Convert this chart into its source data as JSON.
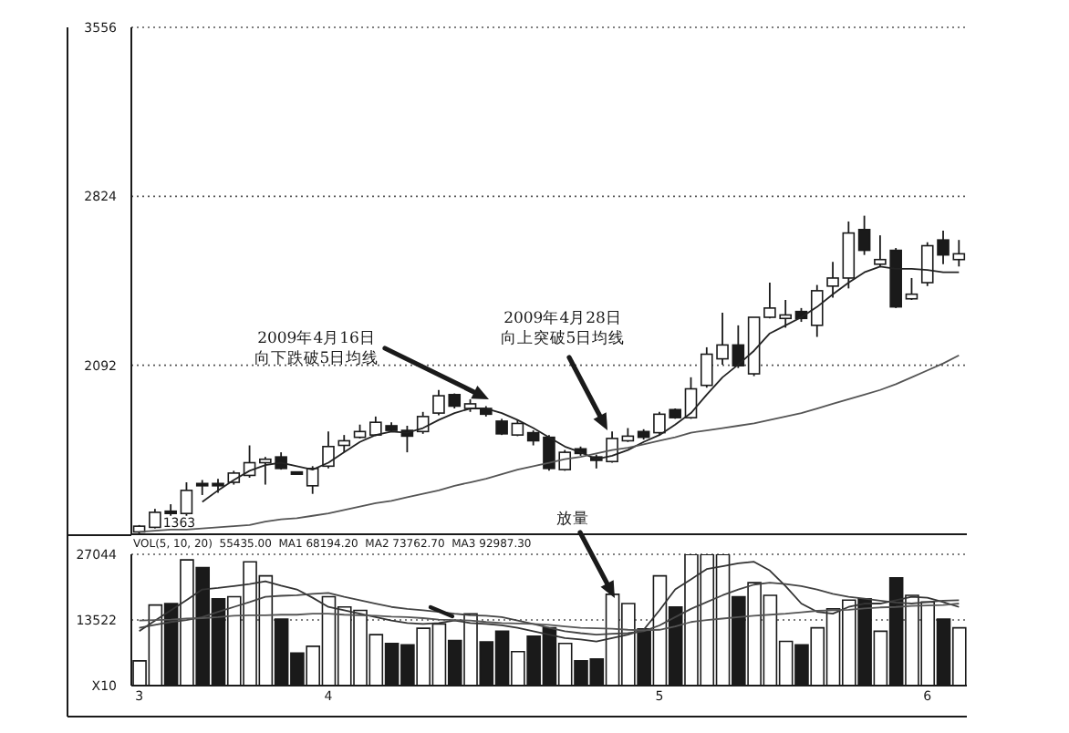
{
  "chart_data": [
    {
      "type": "candlestick",
      "categories": [
        null,
        null,
        null,
        null,
        null,
        null,
        null,
        null,
        null,
        null,
        null,
        null,
        null,
        null,
        null,
        null,
        null,
        null,
        null,
        null,
        null,
        null,
        null,
        null,
        null,
        null,
        null,
        null,
        null,
        null,
        null,
        null,
        null,
        null,
        null,
        null,
        null,
        null,
        null,
        null,
        null,
        null,
        null,
        null,
        null,
        null,
        null,
        null,
        null,
        null,
        null,
        null,
        null
      ],
      "ohlc": [
        [
          1370,
          1400,
          1363,
          1395
        ],
        [
          1390,
          1470,
          1385,
          1455
        ],
        [
          1460,
          1490,
          1440,
          1450
        ],
        [
          1450,
          1585,
          1440,
          1550
        ],
        [
          1580,
          1595,
          1530,
          1570
        ],
        [
          1580,
          1600,
          1540,
          1570
        ],
        [
          1585,
          1635,
          1575,
          1625
        ],
        [
          1615,
          1745,
          1605,
          1670
        ],
        [
          1670,
          1695,
          1575,
          1685
        ],
        [
          1695,
          1715,
          1640,
          1645
        ],
        [
          1630,
          1630,
          1620,
          1620
        ],
        [
          1570,
          1655,
          1535,
          1645
        ],
        [
          1655,
          1805,
          1645,
          1740
        ],
        [
          1745,
          1790,
          1715,
          1765
        ],
        [
          1780,
          1835,
          1775,
          1805
        ],
        [
          1790,
          1870,
          1785,
          1845
        ],
        [
          1830,
          1845,
          1805,
          1810
        ],
        [
          1810,
          1830,
          1715,
          1785
        ],
        [
          1805,
          1890,
          1795,
          1870
        ],
        [
          1885,
          1985,
          1875,
          1960
        ],
        [
          1965,
          1970,
          1905,
          1915
        ],
        [
          1905,
          1945,
          1890,
          1925
        ],
        [
          1905,
          1915,
          1870,
          1880
        ],
        [
          1850,
          1860,
          1790,
          1795
        ],
        [
          1790,
          1855,
          1785,
          1840
        ],
        [
          1800,
          1810,
          1745,
          1765
        ],
        [
          1780,
          1790,
          1635,
          1645
        ],
        [
          1640,
          1725,
          1635,
          1715
        ],
        [
          1730,
          1740,
          1700,
          1710
        ],
        [
          1695,
          1705,
          1645,
          1680
        ],
        [
          1675,
          1805,
          1670,
          1775
        ],
        [
          1765,
          1820,
          1760,
          1785
        ],
        [
          1805,
          1815,
          1770,
          1780
        ],
        [
          1800,
          1890,
          1790,
          1880
        ],
        [
          1900,
          1905,
          1860,
          1865
        ],
        [
          1865,
          2040,
          1860,
          1990
        ],
        [
          2005,
          2170,
          1995,
          2140
        ],
        [
          2120,
          2320,
          2095,
          2180
        ],
        [
          2180,
          2265,
          2080,
          2090
        ],
        [
          2055,
          2300,
          2045,
          2300
        ],
        [
          2300,
          2450,
          2295,
          2340
        ],
        [
          2295,
          2375,
          2255,
          2310
        ],
        [
          2325,
          2340,
          2280,
          2295
        ],
        [
          2265,
          2440,
          2215,
          2415
        ],
        [
          2435,
          2540,
          2385,
          2470
        ],
        [
          2470,
          2715,
          2425,
          2665
        ],
        [
          2680,
          2740,
          2570,
          2590
        ],
        [
          2530,
          2655,
          2520,
          2550
        ],
        [
          2590,
          2600,
          2340,
          2345
        ],
        [
          2380,
          2470,
          2375,
          2400
        ],
        [
          2450,
          2625,
          2435,
          2610
        ],
        [
          2635,
          2675,
          2530,
          2570
        ],
        [
          2550,
          2635,
          2520,
          2575
        ]
      ],
      "series": [
        {
          "type": "line",
          "color": "#222222",
          "values": [
            null,
            null,
            null,
            null,
            1500,
            1550,
            1595,
            1635,
            1660,
            1670,
            1655,
            1640,
            1670,
            1715,
            1760,
            1790,
            1805,
            1800,
            1820,
            1855,
            1885,
            1905,
            1905,
            1885,
            1855,
            1820,
            1780,
            1740,
            1715,
            1685,
            1700,
            1725,
            1760,
            1790,
            1835,
            1885,
            1965,
            2040,
            2095,
            2155,
            2230,
            2265,
            2300,
            2345,
            2400,
            2450,
            2495,
            2520,
            2510,
            2510,
            2505,
            2495,
            2495
          ]
        },
        {
          "type": "line",
          "color": "#555555",
          "values": [
            1370,
            1375,
            1380,
            1380,
            1385,
            1390,
            1395,
            1400,
            1415,
            1425,
            1430,
            1440,
            1450,
            1465,
            1480,
            1495,
            1505,
            1520,
            1535,
            1550,
            1570,
            1585,
            1600,
            1620,
            1640,
            1655,
            1670,
            1685,
            1695,
            1710,
            1725,
            1735,
            1750,
            1765,
            1780,
            1800,
            1810,
            1820,
            1830,
            1840,
            1855,
            1870,
            1885,
            1905,
            1925,
            1945,
            1965,
            1985,
            2010,
            2040,
            2070,
            2100,
            2135
          ]
        }
      ],
      "ylim": [
        1360,
        3556
      ],
      "yticks": [
        2092,
        2824,
        3556
      ],
      "grid": "y",
      "tick_labels": "y",
      "annotations": [
        "2009年4月16日向下跌破5日均线",
        "2009年4月28日向上突破5日均线",
        {
          "text": "1363",
          "y": 1363
        }
      ]
    },
    {
      "type": "bar",
      "title": "VOL(5, 10, 20)  55435.00  MA1 68194.20  MA2 73762.70  MA3 92987.30",
      "categories": [
        "3",
        null,
        null,
        null,
        null,
        null,
        null,
        null,
        null,
        null,
        null,
        null,
        "4",
        null,
        null,
        null,
        null,
        null,
        null,
        null,
        null,
        null,
        null,
        null,
        null,
        null,
        null,
        null,
        null,
        null,
        null,
        null,
        null,
        "5",
        null,
        null,
        null,
        null,
        null,
        null,
        null,
        null,
        null,
        null,
        null,
        null,
        null,
        null,
        null,
        null,
        "6",
        null,
        null
      ],
      "series": [
        {
          "type": "bar",
          "colors": [
            "#ffffff",
            "#ffffff",
            "#1a1a1a",
            "#ffffff",
            "#1a1a1a",
            "#1a1a1a",
            "#ffffff",
            "#ffffff",
            "#ffffff",
            "#1a1a1a",
            "#1a1a1a",
            "#ffffff",
            "#ffffff",
            "#ffffff",
            "#ffffff",
            "#ffffff",
            "#1a1a1a",
            "#1a1a1a",
            "#ffffff",
            "#ffffff",
            "#1a1a1a",
            "#ffffff",
            "#1a1a1a",
            "#1a1a1a",
            "#ffffff",
            "#1a1a1a",
            "#1a1a1a",
            "#ffffff",
            "#1a1a1a",
            "#1a1a1a",
            "#ffffff",
            "#ffffff",
            "#1a1a1a",
            "#ffffff",
            "#1a1a1a",
            "#ffffff",
            "#ffffff",
            "#ffffff",
            "#1a1a1a",
            "#ffffff",
            "#ffffff",
            "#ffffff",
            "#1a1a1a",
            "#ffffff",
            "#ffffff",
            "#ffffff",
            "#1a1a1a",
            "#ffffff",
            "#1a1a1a",
            "#ffffff",
            "#ffffff",
            "#1a1a1a",
            "#ffffff"
          ],
          "values": [
            5100,
            16600,
            16900,
            25900,
            24300,
            17900,
            18300,
            25500,
            22600,
            13700,
            6700,
            8100,
            18300,
            16200,
            15500,
            10500,
            8700,
            8400,
            11800,
            12700,
            9300,
            14800,
            9000,
            11200,
            7000,
            10200,
            11900,
            8700,
            5100,
            5500,
            18800,
            16900,
            11700,
            22600,
            16200,
            27000,
            27000,
            27000,
            18300,
            21200,
            18600,
            9100,
            8400,
            11900,
            15800,
            17600,
            17900,
            11200,
            22200,
            18600,
            17200,
            13700,
            11900
          ]
        },
        {
          "type": "line",
          "color": "#333333",
          "values": [
            11200,
            13400,
            15500,
            17600,
            19800,
            20100,
            20500,
            20900,
            21500,
            20600,
            19800,
            18100,
            16200,
            15500,
            14800,
            14100,
            13400,
            12900,
            12700,
            12900,
            13400,
            12900,
            12700,
            12400,
            11900,
            11200,
            10500,
            9800,
            9500,
            9100,
            9800,
            10500,
            11500,
            15500,
            19800,
            21900,
            24000,
            24600,
            25200,
            25500,
            23700,
            20500,
            16900,
            15200,
            14800,
            16200,
            16900,
            16900,
            17600,
            18300,
            18100,
            17200,
            16200
          ]
        },
        {
          "type": "line",
          "color": "#444444",
          "values": [
            11900,
            12500,
            13100,
            13500,
            14100,
            15200,
            16200,
            17200,
            18300,
            18500,
            18600,
            18900,
            19100,
            18300,
            17600,
            16900,
            16200,
            15800,
            15500,
            15200,
            14800,
            14500,
            14400,
            14100,
            13400,
            12700,
            11900,
            11200,
            10800,
            10500,
            10700,
            10800,
            11200,
            12400,
            14100,
            15800,
            17200,
            18600,
            19800,
            20800,
            21200,
            20900,
            20500,
            19800,
            18900,
            18300,
            17900,
            17500,
            17100,
            16900,
            17200,
            17500,
            17600
          ]
        },
        {
          "type": "line",
          "color": "#555555",
          "values": [
            13400,
            13500,
            13600,
            13800,
            13900,
            14100,
            14400,
            14500,
            14500,
            14600,
            14600,
            14800,
            14800,
            14600,
            14500,
            14400,
            14200,
            14100,
            13900,
            13600,
            13500,
            13400,
            13100,
            12900,
            12800,
            12700,
            12500,
            12200,
            11900,
            11800,
            11700,
            11500,
            11400,
            11500,
            12200,
            13100,
            13500,
            13800,
            14100,
            14400,
            14600,
            14800,
            15100,
            15400,
            15500,
            15600,
            15900,
            16100,
            16200,
            16400,
            16500,
            16600,
            16900
          ]
        }
      ],
      "ylim": [
        0,
        27044
      ],
      "yticks": [
        {
          "value": 0,
          "label": "X10"
        },
        13522,
        27044
      ],
      "grid": "y",
      "annotations": [
        "放量"
      ]
    }
  ]
}
